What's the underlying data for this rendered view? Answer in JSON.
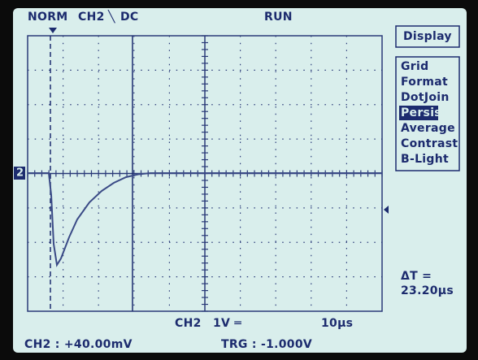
{
  "header": {
    "mode": "NORM",
    "channel": "CH2",
    "slope": "╲",
    "coupling": "DC",
    "state": "RUN"
  },
  "trace": {
    "marker": "2"
  },
  "menu": {
    "title": "Display",
    "items": [
      "Grid",
      "Format",
      "DotJoin",
      "Persist",
      "Average",
      "Contrast",
      "B-Light"
    ],
    "selected": 3
  },
  "readout": {
    "delta_t_label": "ΔT =",
    "delta_t_value": "23.20µs"
  },
  "footer": {
    "scale_channel": "CH2",
    "volts_per_div": "1V ═",
    "time_per_div": "10µs",
    "channel_reading": "CH2 : +40.00mV",
    "trigger_level": "TRG : -1.000V"
  }
}
